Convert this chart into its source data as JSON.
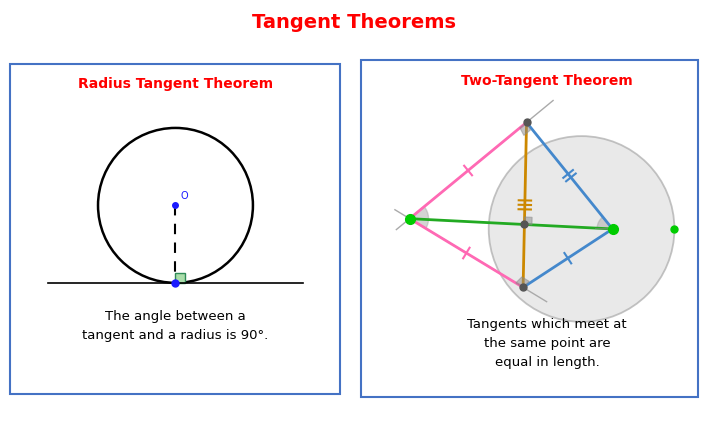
{
  "title": "Tangent Theorems",
  "title_color": "#ff0000",
  "title_fontsize": 14,
  "left_title": "Radius Tangent Theorem",
  "right_title": "Two-Tangent Theorem",
  "left_text": "The angle between a\ntangent and a radius is 90°.",
  "right_text": "Tangents which meet at\nthe same point are\nequal in length.",
  "box_edge_color": "#4472c4",
  "background_color": "#ffffff"
}
